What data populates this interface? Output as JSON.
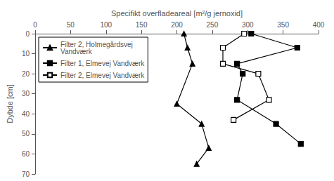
{
  "chart_data": {
    "type": "line",
    "xlabel": "Specifikt overfladeareal [m²/g jernoxid]",
    "ylabel": "Dybde [cm]",
    "xlim": [
      0,
      400
    ],
    "ylim": [
      70,
      0
    ],
    "xticks": [
      0,
      50,
      100,
      150,
      200,
      250,
      300,
      350,
      400
    ],
    "yticks": [
      0,
      10,
      20,
      30,
      40,
      50,
      60,
      70
    ],
    "grid": false,
    "legend": "upper left",
    "series": [
      {
        "name": "Filter 2, Holmegårdsvej\nVandværk",
        "color": "#000000",
        "marker": "triangle",
        "line_style": "solid",
        "x": [
          210,
          215,
          222,
          200,
          235,
          245,
          228
        ],
        "values": [
          0,
          7,
          15,
          35,
          45,
          57,
          65
        ]
      },
      {
        "name": "Filter 1, Elmevej Vandværk",
        "color": "#000000",
        "marker": "square",
        "line_style": "solid",
        "x": [
          305,
          370,
          285,
          293,
          285,
          340,
          375
        ],
        "values": [
          0,
          7,
          15,
          20,
          33,
          45,
          55
        ]
      },
      {
        "name": "Filter 2, Elmevej Vandværk",
        "color": "#000000",
        "marker": "open_square",
        "line_style": "solid",
        "x": [
          295,
          265,
          265,
          315,
          330,
          280
        ],
        "values": [
          0,
          7,
          15,
          20,
          33,
          43
        ]
      }
    ]
  }
}
